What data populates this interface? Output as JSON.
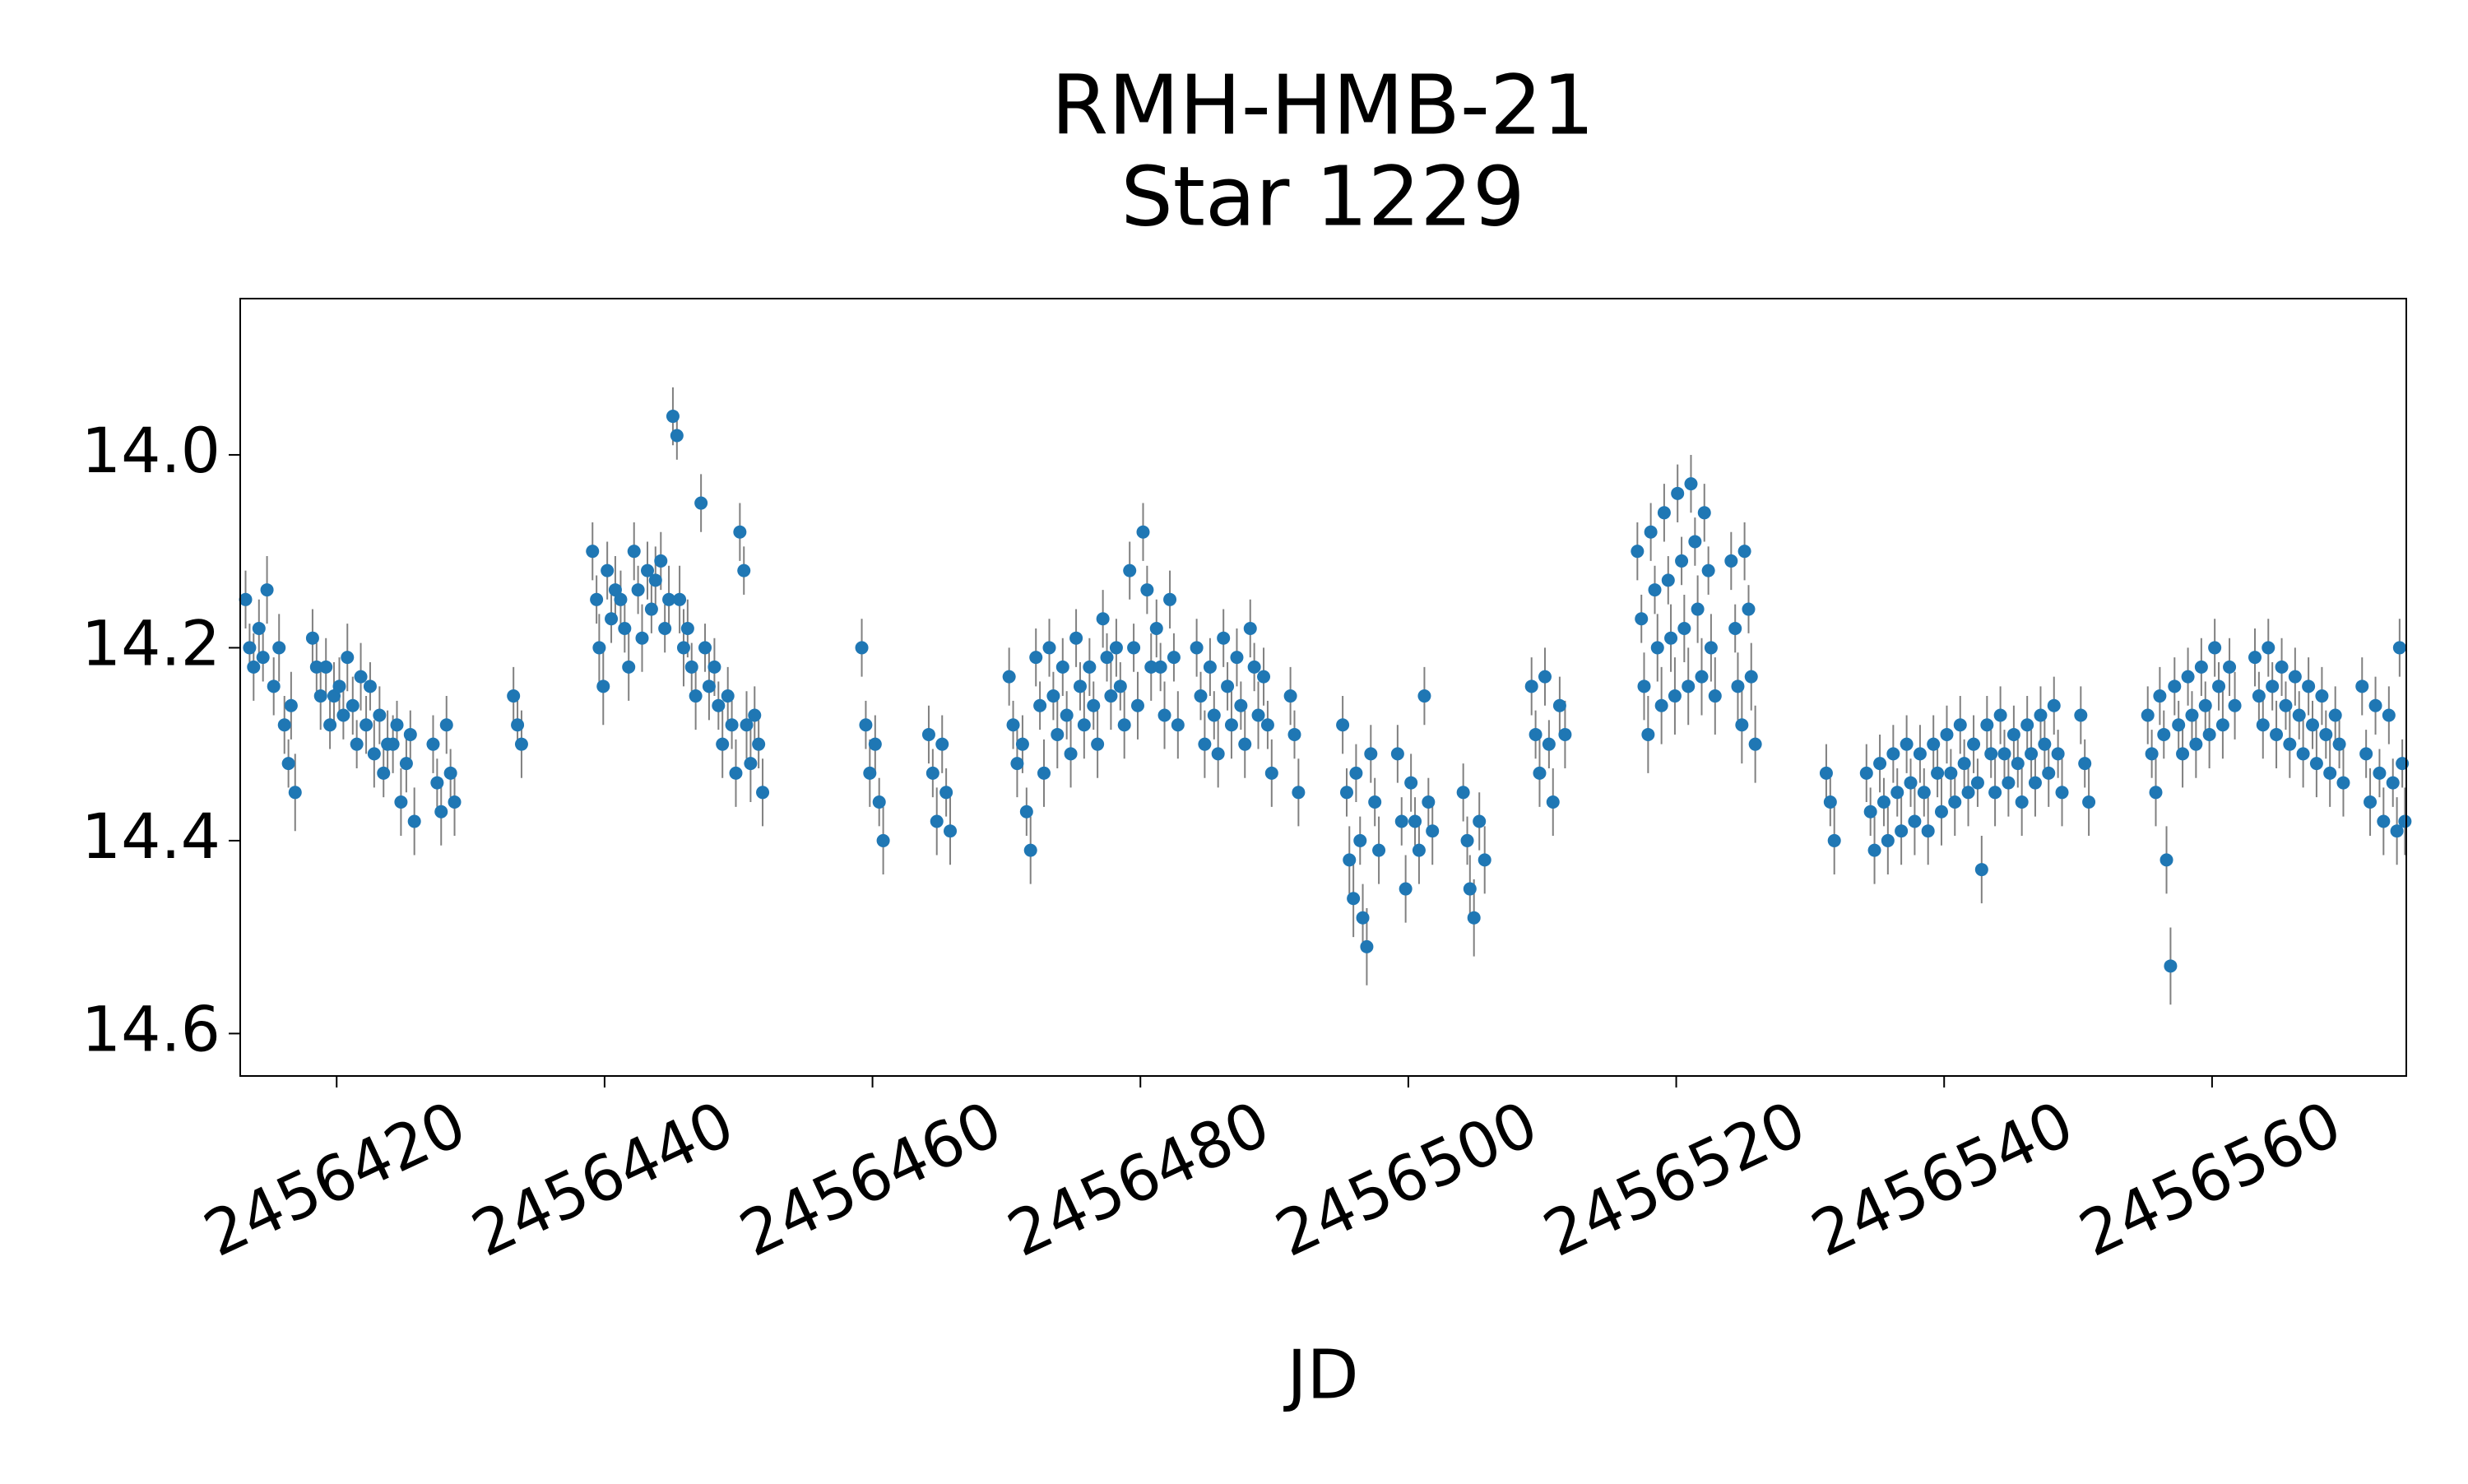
{
  "chart_data": {
    "type": "errorbar_scatter",
    "title": "RMH-HMB-21",
    "subtitle": "Star 1229",
    "x_label": "JD",
    "color": "#1f77b4",
    "error_color": "#808080",
    "xlim": [
      2456412.8,
      2456574.5
    ],
    "xticks": [
      2456420,
      2456440,
      2456460,
      2456480,
      2456500,
      2456520,
      2456540,
      2456560
    ],
    "ylim": [
      13.838,
      14.644
    ],
    "y_inverted": true,
    "yticks": [
      {
        "value": 14,
        "label": "14.0"
      },
      14.2,
      14.4,
      14.6
    ],
    "x": [
      2456413.2,
      2456413.5,
      2456413.8,
      2456414.2,
      2456414.5,
      2456414.8,
      2456415.3,
      2456415.7,
      2456416.1,
      2456416.4,
      2456416.6,
      2456416.9,
      2456418.2,
      2456418.5,
      2456418.8,
      2456419.2,
      2456419.5,
      2456419.8,
      2456420.2,
      2456420.5,
      2456420.8,
      2456421.2,
      2456421.5,
      2456421.8,
      2456422.2,
      2456422.5,
      2456422.8,
      2456423.2,
      2456423.5,
      2456423.8,
      2456424.2,
      2456424.5,
      2456424.8,
      2456425.2,
      2456425.5,
      2456425.8,
      2456427.2,
      2456427.5,
      2456427.8,
      2456428.2,
      2456428.5,
      2456428.8,
      2456433.2,
      2456433.5,
      2456433.8,
      2456439.1,
      2456439.4,
      2456439.6,
      2456439.9,
      2456440.2,
      2456440.5,
      2456440.8,
      2456441.2,
      2456441.5,
      2456441.8,
      2456442.2,
      2456442.5,
      2456442.8,
      2456443.2,
      2456443.5,
      2456443.8,
      2456444.2,
      2456444.5,
      2456444.8,
      2456445.1,
      2456445.4,
      2456445.6,
      2456445.9,
      2456446.2,
      2456446.5,
      2456446.8,
      2456447.2,
      2456447.5,
      2456447.8,
      2456448.2,
      2456448.5,
      2456448.8,
      2456449.2,
      2456449.5,
      2456449.8,
      2456450.1,
      2456450.4,
      2456450.6,
      2456450.9,
      2456451.2,
      2456451.5,
      2456451.8,
      2456459.2,
      2456459.5,
      2456459.8,
      2456460.2,
      2456460.5,
      2456460.8,
      2456464.2,
      2456464.5,
      2456464.8,
      2456465.2,
      2456465.5,
      2456465.8,
      2456470.2,
      2456470.5,
      2456470.8,
      2456471.2,
      2456471.5,
      2456471.8,
      2456472.2,
      2456472.5,
      2456472.8,
      2456473.2,
      2456473.5,
      2456473.8,
      2456474.2,
      2456474.5,
      2456474.8,
      2456475.2,
      2456475.5,
      2456475.8,
      2456476.2,
      2456476.5,
      2456476.8,
      2456477.2,
      2456477.5,
      2456477.8,
      2456478.2,
      2456478.5,
      2456478.8,
      2456479.2,
      2456479.5,
      2456479.8,
      2456480.2,
      2456480.5,
      2456480.8,
      2456481.2,
      2456481.5,
      2456481.8,
      2456482.2,
      2456482.5,
      2456482.8,
      2456484.2,
      2456484.5,
      2456484.8,
      2456485.2,
      2456485.5,
      2456485.8,
      2456486.2,
      2456486.5,
      2456486.8,
      2456487.2,
      2456487.5,
      2456487.8,
      2456488.2,
      2456488.5,
      2456488.8,
      2456489.2,
      2456489.5,
      2456489.8,
      2456491.2,
      2456491.5,
      2456491.8,
      2456495.1,
      2456495.4,
      2456495.6,
      2456495.9,
      2456496.1,
      2456496.4,
      2456496.6,
      2456496.9,
      2456497.2,
      2456497.5,
      2456497.8,
      2456499.2,
      2456499.5,
      2456499.8,
      2456500.2,
      2456500.5,
      2456500.8,
      2456501.2,
      2456501.5,
      2456501.8,
      2456504.1,
      2456504.4,
      2456504.6,
      2456504.9,
      2456505.3,
      2456505.7,
      2456509.2,
      2456509.5,
      2456509.8,
      2456510.2,
      2456510.5,
      2456510.8,
      2456511.3,
      2456511.7,
      2456517.1,
      2456517.4,
      2456517.6,
      2456517.9,
      2456518.1,
      2456518.4,
      2456518.6,
      2456518.9,
      2456519.1,
      2456519.4,
      2456519.6,
      2456519.9,
      2456520.1,
      2456520.4,
      2456520.6,
      2456520.9,
      2456521.1,
      2456521.4,
      2456521.6,
      2456521.9,
      2456522.1,
      2456522.4,
      2456522.6,
      2456522.9,
      2456524.1,
      2456524.4,
      2456524.6,
      2456524.9,
      2456525.1,
      2456525.4,
      2456525.6,
      2456525.9,
      2456531.2,
      2456531.5,
      2456531.8,
      2456534.2,
      2456534.5,
      2456534.8,
      2456535.2,
      2456535.5,
      2456535.8,
      2456536.2,
      2456536.5,
      2456536.8,
      2456537.2,
      2456537.5,
      2456537.8,
      2456538.2,
      2456538.5,
      2456538.8,
      2456539.2,
      2456539.5,
      2456539.8,
      2456540.2,
      2456540.5,
      2456540.8,
      2456541.2,
      2456541.5,
      2456541.8,
      2456542.2,
      2456542.5,
      2456542.8,
      2456543.2,
      2456543.5,
      2456543.8,
      2456544.2,
      2456544.5,
      2456544.8,
      2456545.2,
      2456545.5,
      2456545.8,
      2456546.2,
      2456546.5,
      2456546.8,
      2456547.2,
      2456547.5,
      2456547.8,
      2456548.2,
      2456548.5,
      2456548.8,
      2456550.2,
      2456550.5,
      2456550.8,
      2456555.2,
      2456555.5,
      2456555.8,
      2456556.1,
      2456556.4,
      2456556.6,
      2456556.9,
      2456557.2,
      2456557.5,
      2456557.8,
      2456558.2,
      2456558.5,
      2456558.8,
      2456559.2,
      2456559.5,
      2456559.8,
      2456560.2,
      2456560.5,
      2456560.8,
      2456561.3,
      2456561.7,
      2456563.2,
      2456563.5,
      2456563.8,
      2456564.2,
      2456564.5,
      2456564.8,
      2456565.2,
      2456565.5,
      2456565.8,
      2456566.2,
      2456566.5,
      2456566.8,
      2456567.2,
      2456567.5,
      2456567.8,
      2456568.2,
      2456568.5,
      2456568.8,
      2456569.2,
      2456569.5,
      2456569.8,
      2456571.2,
      2456571.5,
      2456571.8,
      2456572.2,
      2456572.5,
      2456572.8,
      2456573.2,
      2456573.5,
      2456573.8,
      2456574.0,
      2456574.2,
      2456574.4
    ],
    "values": [
      14.15,
      14.2,
      14.22,
      14.18,
      14.21,
      14.14,
      14.24,
      14.2,
      14.28,
      14.32,
      14.26,
      14.35,
      14.19,
      14.22,
      14.25,
      14.22,
      14.28,
      14.25,
      14.24,
      14.27,
      14.21,
      14.26,
      14.3,
      14.23,
      14.28,
      14.24,
      14.31,
      14.27,
      14.33,
      14.3,
      14.3,
      14.28,
      14.36,
      14.32,
      14.29,
      14.38,
      14.3,
      14.34,
      14.37,
      14.28,
      14.33,
      14.36,
      14.25,
      14.28,
      14.3,
      14.1,
      14.15,
      14.2,
      14.24,
      14.12,
      14.17,
      14.14,
      14.15,
      14.18,
      14.22,
      14.1,
      14.14,
      14.19,
      14.12,
      14.16,
      14.13,
      14.11,
      14.18,
      14.15,
      13.96,
      13.98,
      14.15,
      14.2,
      14.18,
      14.22,
      14.25,
      14.05,
      14.2,
      14.24,
      14.22,
      14.26,
      14.3,
      14.25,
      14.28,
      14.33,
      14.08,
      14.12,
      14.28,
      14.32,
      14.27,
      14.3,
      14.35,
      14.2,
      14.28,
      14.33,
      14.3,
      14.36,
      14.4,
      14.29,
      14.33,
      14.38,
      14.3,
      14.35,
      14.39,
      14.23,
      14.28,
      14.32,
      14.3,
      14.37,
      14.41,
      14.21,
      14.26,
      14.33,
      14.2,
      14.25,
      14.29,
      14.22,
      14.27,
      14.31,
      14.19,
      14.24,
      14.28,
      14.22,
      14.26,
      14.3,
      14.17,
      14.21,
      14.25,
      14.2,
      14.24,
      14.28,
      14.12,
      14.2,
      14.26,
      14.08,
      14.14,
      14.22,
      14.18,
      14.22,
      14.27,
      14.15,
      14.21,
      14.28,
      14.2,
      14.25,
      14.3,
      14.22,
      14.27,
      14.31,
      14.19,
      14.24,
      14.28,
      14.21,
      14.26,
      14.3,
      14.18,
      14.22,
      14.27,
      14.23,
      14.28,
      14.33,
      14.25,
      14.29,
      14.35,
      14.28,
      14.35,
      14.42,
      14.46,
      14.33,
      14.4,
      14.48,
      14.51,
      14.31,
      14.36,
      14.41,
      14.31,
      14.38,
      14.45,
      14.34,
      14.38,
      14.41,
      14.25,
      14.36,
      14.39,
      14.35,
      14.4,
      14.45,
      14.48,
      14.38,
      14.42,
      14.24,
      14.29,
      14.33,
      14.23,
      14.3,
      14.36,
      14.26,
      14.29,
      14.1,
      14.17,
      14.24,
      14.29,
      14.08,
      14.14,
      14.2,
      14.26,
      14.06,
      14.13,
      14.19,
      14.25,
      14.04,
      14.11,
      14.18,
      14.24,
      14.03,
      14.09,
      14.16,
      14.23,
      14.06,
      14.12,
      14.2,
      14.25,
      14.11,
      14.18,
      14.24,
      14.28,
      14.1,
      14.16,
      14.23,
      14.3,
      14.33,
      14.36,
      14.4,
      14.33,
      14.37,
      14.41,
      14.32,
      14.36,
      14.4,
      14.31,
      14.35,
      14.39,
      14.3,
      14.34,
      14.38,
      14.31,
      14.35,
      14.39,
      14.3,
      14.33,
      14.37,
      14.29,
      14.33,
      14.36,
      14.28,
      14.32,
      14.35,
      14.3,
      14.34,
      14.43,
      14.28,
      14.31,
      14.35,
      14.27,
      14.31,
      14.34,
      14.29,
      14.32,
      14.36,
      14.28,
      14.31,
      14.34,
      14.27,
      14.3,
      14.33,
      14.26,
      14.31,
      14.35,
      14.27,
      14.32,
      14.36,
      14.27,
      14.31,
      14.35,
      14.25,
      14.29,
      14.42,
      14.53,
      14.24,
      14.28,
      14.31,
      14.23,
      14.27,
      14.3,
      14.22,
      14.26,
      14.29,
      14.2,
      14.24,
      14.28,
      14.22,
      14.26,
      14.21,
      14.25,
      14.28,
      14.2,
      14.24,
      14.29,
      14.22,
      14.26,
      14.3,
      14.23,
      14.27,
      14.31,
      14.24,
      14.28,
      14.32,
      14.25,
      14.29,
      14.33,
      14.27,
      14.3,
      14.34,
      14.24,
      14.31,
      14.36,
      14.26,
      14.33,
      14.38,
      14.27,
      14.34,
      14.39,
      14.2,
      14.32,
      14.38
    ],
    "errors": [
      0.03,
      0.025,
      0.035,
      0.03,
      0.025,
      0.035,
      0.03,
      0.035,
      0.03,
      0.025,
      0.035,
      0.04,
      0.03,
      0.025,
      0.035,
      0.03,
      0.025,
      0.035,
      0.03,
      0.025,
      0.035,
      0.03,
      0.025,
      0.035,
      0.03,
      0.025,
      0.035,
      0.03,
      0.025,
      0.035,
      0.03,
      0.025,
      0.035,
      0.03,
      0.025,
      0.035,
      0.03,
      0.025,
      0.035,
      0.03,
      0.025,
      0.035,
      0.03,
      0.025,
      0.035,
      0.03,
      0.025,
      0.035,
      0.04,
      0.03,
      0.025,
      0.035,
      0.03,
      0.025,
      0.035,
      0.03,
      0.025,
      0.035,
      0.03,
      0.025,
      0.035,
      0.03,
      0.025,
      0.035,
      0.03,
      0.025,
      0.035,
      0.04,
      0.03,
      0.025,
      0.035,
      0.03,
      0.025,
      0.035,
      0.03,
      0.025,
      0.035,
      0.03,
      0.025,
      0.035,
      0.03,
      0.025,
      0.035,
      0.04,
      0.03,
      0.025,
      0.035,
      0.03,
      0.025,
      0.035,
      0.03,
      0.025,
      0.035,
      0.03,
      0.025,
      0.035,
      0.03,
      0.025,
      0.035,
      0.03,
      0.025,
      0.035,
      0.03,
      0.025,
      0.035,
      0.03,
      0.025,
      0.035,
      0.03,
      0.025,
      0.035,
      0.03,
      0.025,
      0.035,
      0.03,
      0.025,
      0.035,
      0.03,
      0.025,
      0.035,
      0.03,
      0.025,
      0.035,
      0.03,
      0.025,
      0.035,
      0.03,
      0.025,
      0.035,
      0.03,
      0.025,
      0.035,
      0.03,
      0.025,
      0.035,
      0.03,
      0.025,
      0.035,
      0.03,
      0.025,
      0.035,
      0.03,
      0.025,
      0.035,
      0.03,
      0.025,
      0.035,
      0.03,
      0.025,
      0.035,
      0.03,
      0.025,
      0.035,
      0.03,
      0.025,
      0.035,
      0.03,
      0.025,
      0.035,
      0.03,
      0.025,
      0.035,
      0.04,
      0.03,
      0.025,
      0.035,
      0.04,
      0.03,
      0.025,
      0.035,
      0.03,
      0.025,
      0.035,
      0.03,
      0.025,
      0.035,
      0.03,
      0.025,
      0.035,
      0.03,
      0.025,
      0.035,
      0.04,
      0.03,
      0.035,
      0.03,
      0.025,
      0.035,
      0.03,
      0.025,
      0.035,
      0.03,
      0.035,
      0.03,
      0.025,
      0.035,
      0.04,
      0.03,
      0.025,
      0.035,
      0.04,
      0.03,
      0.025,
      0.035,
      0.04,
      0.03,
      0.025,
      0.035,
      0.04,
      0.03,
      0.025,
      0.035,
      0.04,
      0.03,
      0.025,
      0.035,
      0.04,
      0.03,
      0.025,
      0.035,
      0.04,
      0.03,
      0.025,
      0.035,
      0.04,
      0.03,
      0.025,
      0.035,
      0.03,
      0.025,
      0.035,
      0.03,
      0.025,
      0.035,
      0.03,
      0.025,
      0.035,
      0.03,
      0.025,
      0.035,
      0.03,
      0.025,
      0.035,
      0.03,
      0.025,
      0.035,
      0.03,
      0.025,
      0.035,
      0.03,
      0.025,
      0.035,
      0.03,
      0.025,
      0.035,
      0.03,
      0.025,
      0.035,
      0.03,
      0.025,
      0.035,
      0.03,
      0.025,
      0.035,
      0.03,
      0.025,
      0.035,
      0.03,
      0.025,
      0.035,
      0.03,
      0.025,
      0.035,
      0.03,
      0.025,
      0.035,
      0.03,
      0.025,
      0.035,
      0.03,
      0.025,
      0.035,
      0.04,
      0.03,
      0.025,
      0.035,
      0.03,
      0.025,
      0.035,
      0.03,
      0.025,
      0.035,
      0.03,
      0.025,
      0.035,
      0.03,
      0.035,
      0.03,
      0.025,
      0.035,
      0.03,
      0.025,
      0.035,
      0.03,
      0.025,
      0.035,
      0.03,
      0.025,
      0.035,
      0.03,
      0.025,
      0.035,
      0.03,
      0.025,
      0.035,
      0.03,
      0.025,
      0.035,
      0.03,
      0.025,
      0.035,
      0.03,
      0.025,
      0.035,
      0.03,
      0.025,
      0.035,
      0.03,
      0.025,
      0.035
    ]
  }
}
